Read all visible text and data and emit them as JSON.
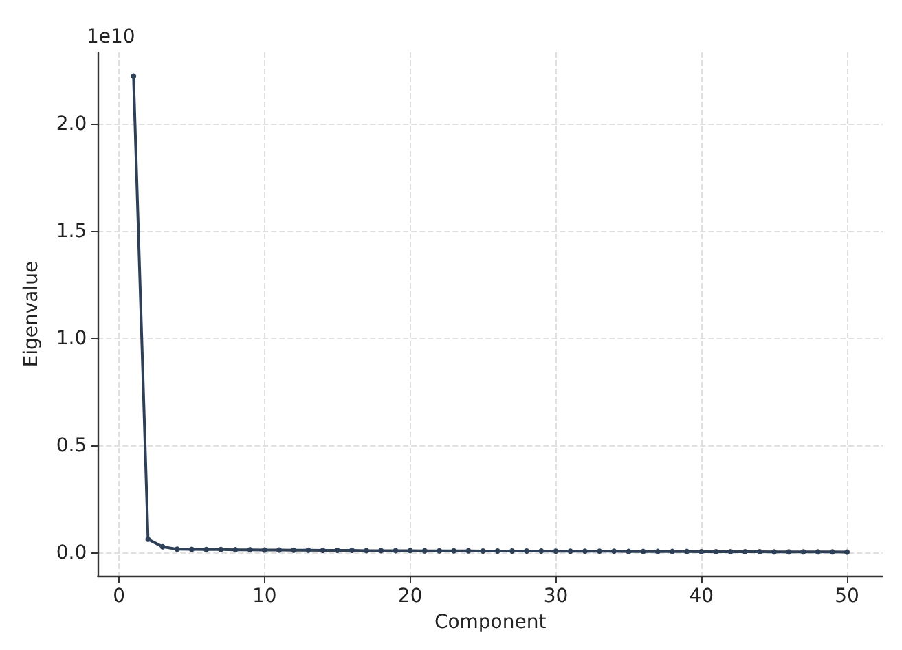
{
  "chart_data": {
    "type": "line",
    "xlabel": "Component",
    "ylabel": "Eigenvalue",
    "annotations": [
      "1e10"
    ],
    "x": [
      1,
      2,
      3,
      4,
      5,
      6,
      7,
      8,
      9,
      10,
      11,
      12,
      13,
      14,
      15,
      16,
      17,
      18,
      19,
      20,
      21,
      22,
      23,
      24,
      25,
      26,
      27,
      28,
      29,
      30,
      31,
      32,
      33,
      34,
      35,
      36,
      37,
      38,
      39,
      40,
      41,
      42,
      43,
      44,
      45,
      46,
      47,
      48,
      49,
      50
    ],
    "series": [
      {
        "color": "#2e4057",
        "values": [
          2.226,
          0.065,
          0.03,
          0.019,
          0.018,
          0.017,
          0.017,
          0.016,
          0.016,
          0.015,
          0.015,
          0.014,
          0.014,
          0.013,
          0.013,
          0.013,
          0.012,
          0.012,
          0.012,
          0.012,
          0.011,
          0.011,
          0.011,
          0.011,
          0.01,
          0.01,
          0.01,
          0.01,
          0.01,
          0.009,
          0.009,
          0.009,
          0.009,
          0.009,
          0.008,
          0.008,
          0.008,
          0.008,
          0.008,
          0.007,
          0.007,
          0.007,
          0.007,
          0.007,
          0.006,
          0.006,
          0.006,
          0.006,
          0.006,
          0.005
        ]
      }
    ],
    "xlim": [
      -1.45,
      52.45
    ],
    "xticks": [
      0,
      10,
      20,
      30,
      40,
      50
    ],
    "ylim": [
      -0.106,
      2.337
    ],
    "yticks": [
      {
        "value": 0,
        "label": "0.0"
      },
      {
        "value": 0.5,
        "label": "0.5"
      },
      {
        "value": 1,
        "label": "1.0"
      },
      {
        "value": 1.5,
        "label": "1.5"
      },
      {
        "value": 2,
        "label": "2.0"
      }
    ],
    "grid": true,
    "marker": "circle",
    "line_style": "solid"
  }
}
